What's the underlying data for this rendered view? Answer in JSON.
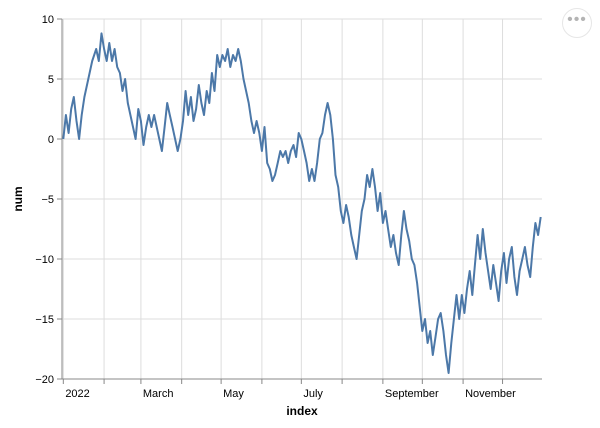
{
  "menu": {
    "icon": "more-horizontal-icon",
    "glyph": "•••"
  },
  "chart_data": {
    "type": "line",
    "title": "",
    "xlabel": "index",
    "ylabel": "num",
    "ylim": [
      -20,
      10
    ],
    "xlim": [
      "2021-12-31",
      "2022-12-31"
    ],
    "yticks": [
      10,
      5,
      0,
      -5,
      -10,
      -15,
      -20
    ],
    "xticks": [
      {
        "date": "2022-01-01",
        "label": "2022"
      },
      {
        "date": "2022-02-01",
        "label": ""
      },
      {
        "date": "2022-03-01",
        "label": "March"
      },
      {
        "date": "2022-04-01",
        "label": ""
      },
      {
        "date": "2022-05-01",
        "label": "May"
      },
      {
        "date": "2022-06-01",
        "label": ""
      },
      {
        "date": "2022-07-01",
        "label": "July"
      },
      {
        "date": "2022-08-01",
        "label": ""
      },
      {
        "date": "2022-09-01",
        "label": "September"
      },
      {
        "date": "2022-10-01",
        "label": ""
      },
      {
        "date": "2022-11-01",
        "label": "November"
      },
      {
        "date": "2022-12-01",
        "label": ""
      }
    ],
    "grid": true,
    "color": "#4c78a8",
    "series": [
      {
        "points": [
          [
            "2022-01-01",
            0
          ],
          [
            "2022-01-03",
            2
          ],
          [
            "2022-01-05",
            0.5
          ],
          [
            "2022-01-07",
            2.5
          ],
          [
            "2022-01-09",
            3.5
          ],
          [
            "2022-01-11",
            1.5
          ],
          [
            "2022-01-13",
            0
          ],
          [
            "2022-01-15",
            2
          ],
          [
            "2022-01-17",
            3.5
          ],
          [
            "2022-01-20",
            5
          ],
          [
            "2022-01-23",
            6.5
          ],
          [
            "2022-01-26",
            7.5
          ],
          [
            "2022-01-28",
            6.5
          ],
          [
            "2022-01-30",
            8.8
          ],
          [
            "2022-02-01",
            7.5
          ],
          [
            "2022-02-03",
            6.5
          ],
          [
            "2022-02-05",
            8
          ],
          [
            "2022-02-07",
            6.5
          ],
          [
            "2022-02-09",
            7.5
          ],
          [
            "2022-02-11",
            6
          ],
          [
            "2022-02-13",
            5.5
          ],
          [
            "2022-02-15",
            4
          ],
          [
            "2022-02-17",
            5
          ],
          [
            "2022-02-19",
            3
          ],
          [
            "2022-02-21",
            2
          ],
          [
            "2022-02-23",
            1
          ],
          [
            "2022-02-25",
            0
          ],
          [
            "2022-02-27",
            2.5
          ],
          [
            "2022-03-01",
            1.5
          ],
          [
            "2022-03-03",
            -0.5
          ],
          [
            "2022-03-05",
            1
          ],
          [
            "2022-03-07",
            2
          ],
          [
            "2022-03-09",
            1
          ],
          [
            "2022-03-11",
            2
          ],
          [
            "2022-03-13",
            1
          ],
          [
            "2022-03-15",
            0
          ],
          [
            "2022-03-17",
            -1
          ],
          [
            "2022-03-19",
            1
          ],
          [
            "2022-03-21",
            3
          ],
          [
            "2022-03-23",
            2
          ],
          [
            "2022-03-25",
            1
          ],
          [
            "2022-03-27",
            0
          ],
          [
            "2022-03-29",
            -1
          ],
          [
            "2022-03-31",
            0
          ],
          [
            "2022-04-02",
            1.5
          ],
          [
            "2022-04-04",
            4
          ],
          [
            "2022-04-06",
            2
          ],
          [
            "2022-04-08",
            3.5
          ],
          [
            "2022-04-10",
            1.5
          ],
          [
            "2022-04-12",
            2.5
          ],
          [
            "2022-04-14",
            4.5
          ],
          [
            "2022-04-16",
            3
          ],
          [
            "2022-04-18",
            2
          ],
          [
            "2022-04-20",
            4
          ],
          [
            "2022-04-22",
            3
          ],
          [
            "2022-04-24",
            5.5
          ],
          [
            "2022-04-26",
            4
          ],
          [
            "2022-04-28",
            7
          ],
          [
            "2022-04-30",
            6
          ],
          [
            "2022-05-02",
            7
          ],
          [
            "2022-05-04",
            6.5
          ],
          [
            "2022-05-06",
            7.5
          ],
          [
            "2022-05-08",
            6
          ],
          [
            "2022-05-10",
            7
          ],
          [
            "2022-05-12",
            6.5
          ],
          [
            "2022-05-14",
            7.5
          ],
          [
            "2022-05-16",
            6.5
          ],
          [
            "2022-05-18",
            5
          ],
          [
            "2022-05-20",
            4
          ],
          [
            "2022-05-22",
            3
          ],
          [
            "2022-05-24",
            1.5
          ],
          [
            "2022-05-26",
            0.5
          ],
          [
            "2022-05-28",
            1.5
          ],
          [
            "2022-05-30",
            0.5
          ],
          [
            "2022-06-01",
            -1
          ],
          [
            "2022-06-03",
            1
          ],
          [
            "2022-06-05",
            -2
          ],
          [
            "2022-06-07",
            -2.5
          ],
          [
            "2022-06-09",
            -3.5
          ],
          [
            "2022-06-11",
            -3
          ],
          [
            "2022-06-13",
            -2
          ],
          [
            "2022-06-15",
            -1
          ],
          [
            "2022-06-17",
            -1.5
          ],
          [
            "2022-06-19",
            -1
          ],
          [
            "2022-06-21",
            -2
          ],
          [
            "2022-06-23",
            -1
          ],
          [
            "2022-06-25",
            -0.5
          ],
          [
            "2022-06-27",
            -1.5
          ],
          [
            "2022-06-29",
            0.5
          ],
          [
            "2022-07-01",
            0
          ],
          [
            "2022-07-03",
            -1
          ],
          [
            "2022-07-05",
            -2
          ],
          [
            "2022-07-07",
            -3.5
          ],
          [
            "2022-07-09",
            -2.5
          ],
          [
            "2022-07-11",
            -3.5
          ],
          [
            "2022-07-13",
            -2
          ],
          [
            "2022-07-15",
            0
          ],
          [
            "2022-07-17",
            0.5
          ],
          [
            "2022-07-19",
            2
          ],
          [
            "2022-07-21",
            3
          ],
          [
            "2022-07-23",
            2
          ],
          [
            "2022-07-25",
            0
          ],
          [
            "2022-07-27",
            -3
          ],
          [
            "2022-07-29",
            -4
          ],
          [
            "2022-07-31",
            -6
          ],
          [
            "2022-08-02",
            -7
          ],
          [
            "2022-08-04",
            -5.5
          ],
          [
            "2022-08-06",
            -6.5
          ],
          [
            "2022-08-08",
            -8
          ],
          [
            "2022-08-10",
            -9
          ],
          [
            "2022-08-12",
            -10
          ],
          [
            "2022-08-14",
            -8
          ],
          [
            "2022-08-16",
            -6
          ],
          [
            "2022-08-18",
            -5
          ],
          [
            "2022-08-20",
            -3
          ],
          [
            "2022-08-22",
            -4
          ],
          [
            "2022-08-24",
            -2.5
          ],
          [
            "2022-08-26",
            -4
          ],
          [
            "2022-08-28",
            -6
          ],
          [
            "2022-08-30",
            -4.5
          ],
          [
            "2022-09-01",
            -7
          ],
          [
            "2022-09-03",
            -6
          ],
          [
            "2022-09-05",
            -7.5
          ],
          [
            "2022-09-07",
            -9
          ],
          [
            "2022-09-09",
            -8
          ],
          [
            "2022-09-11",
            -9.5
          ],
          [
            "2022-09-13",
            -10.5
          ],
          [
            "2022-09-15",
            -8
          ],
          [
            "2022-09-17",
            -6
          ],
          [
            "2022-09-19",
            -7.5
          ],
          [
            "2022-09-21",
            -8.5
          ],
          [
            "2022-09-23",
            -10
          ],
          [
            "2022-09-25",
            -10.5
          ],
          [
            "2022-09-27",
            -12
          ],
          [
            "2022-09-29",
            -14
          ],
          [
            "2022-10-01",
            -16
          ],
          [
            "2022-10-03",
            -15
          ],
          [
            "2022-10-05",
            -17
          ],
          [
            "2022-10-07",
            -16
          ],
          [
            "2022-10-09",
            -18
          ],
          [
            "2022-10-11",
            -16.5
          ],
          [
            "2022-10-13",
            -15
          ],
          [
            "2022-10-15",
            -14.5
          ],
          [
            "2022-10-17",
            -16
          ],
          [
            "2022-10-19",
            -18
          ],
          [
            "2022-10-21",
            -19.5
          ],
          [
            "2022-10-23",
            -17
          ],
          [
            "2022-10-25",
            -15
          ],
          [
            "2022-10-27",
            -13
          ],
          [
            "2022-10-29",
            -15
          ],
          [
            "2022-10-31",
            -13
          ],
          [
            "2022-11-02",
            -14.5
          ],
          [
            "2022-11-04",
            -12.5
          ],
          [
            "2022-11-06",
            -11
          ],
          [
            "2022-11-08",
            -13
          ],
          [
            "2022-11-10",
            -10.5
          ],
          [
            "2022-11-12",
            -8
          ],
          [
            "2022-11-14",
            -10
          ],
          [
            "2022-11-16",
            -7.5
          ],
          [
            "2022-11-18",
            -9.5
          ],
          [
            "2022-11-20",
            -11
          ],
          [
            "2022-11-22",
            -12.5
          ],
          [
            "2022-11-24",
            -10.5
          ],
          [
            "2022-11-26",
            -12
          ],
          [
            "2022-11-28",
            -13.5
          ],
          [
            "2022-11-30",
            -11
          ],
          [
            "2022-12-02",
            -9.5
          ],
          [
            "2022-12-04",
            -12
          ],
          [
            "2022-12-06",
            -10
          ],
          [
            "2022-12-08",
            -9
          ],
          [
            "2022-12-10",
            -11.5
          ],
          [
            "2022-12-12",
            -13
          ],
          [
            "2022-12-14",
            -11
          ],
          [
            "2022-12-16",
            -10
          ],
          [
            "2022-12-18",
            -9
          ],
          [
            "2022-12-20",
            -10.5
          ],
          [
            "2022-12-22",
            -11.5
          ],
          [
            "2022-12-24",
            -9
          ],
          [
            "2022-12-26",
            -7
          ],
          [
            "2022-12-28",
            -8
          ],
          [
            "2022-12-30",
            -6.5
          ]
        ]
      }
    ]
  }
}
